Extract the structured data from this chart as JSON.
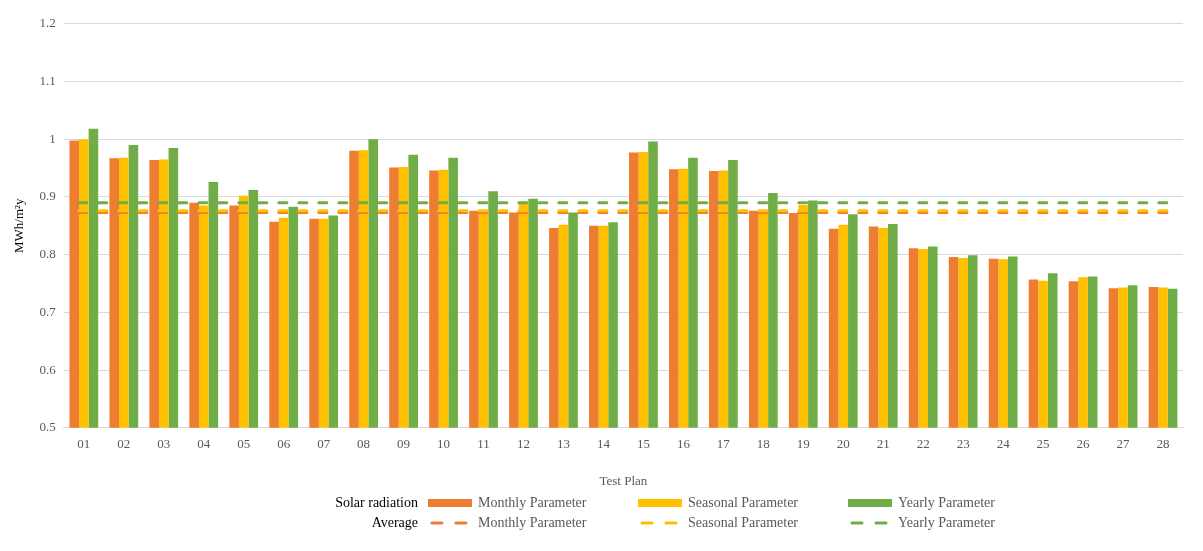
{
  "chart_data": {
    "type": "bar",
    "xlabel": "Test Plan",
    "ylabel": "MWh/m²y",
    "categories": [
      "01",
      "02",
      "03",
      "04",
      "05",
      "06",
      "07",
      "08",
      "09",
      "10",
      "11",
      "12",
      "13",
      "14",
      "15",
      "16",
      "17",
      "18",
      "19",
      "20",
      "21",
      "22",
      "23",
      "24",
      "25",
      "26",
      "27",
      "28"
    ],
    "series": [
      {
        "name": "Monthly Parameter",
        "color": "#ed7d31",
        "values": [
          0.998,
          0.967,
          0.964,
          0.89,
          0.885,
          0.857,
          0.862,
          0.98,
          0.951,
          0.946,
          0.876,
          0.873,
          0.846,
          0.85,
          0.977,
          0.948,
          0.945,
          0.876,
          0.872,
          0.845,
          0.849,
          0.811,
          0.796,
          0.793,
          0.757,
          0.754,
          0.742,
          0.744
        ]
      },
      {
        "name": "Seasonal Parameter",
        "color": "#ffc000",
        "values": [
          1.0,
          0.968,
          0.965,
          0.885,
          0.902,
          0.864,
          0.862,
          0.981,
          0.952,
          0.947,
          0.875,
          0.888,
          0.852,
          0.85,
          0.978,
          0.949,
          0.946,
          0.875,
          0.886,
          0.852,
          0.846,
          0.81,
          0.794,
          0.792,
          0.755,
          0.761,
          0.743,
          0.743
        ]
      },
      {
        "name": "Yearly Parameter",
        "color": "#70ad47",
        "values": [
          1.018,
          0.99,
          0.985,
          0.926,
          0.912,
          0.883,
          0.868,
          1.0,
          0.973,
          0.968,
          0.91,
          0.897,
          0.873,
          0.856,
          0.996,
          0.968,
          0.964,
          0.907,
          0.894,
          0.87,
          0.853,
          0.814,
          0.799,
          0.797,
          0.768,
          0.762,
          0.747,
          0.741
        ]
      }
    ],
    "ref_lines": [
      {
        "axis": "y",
        "value": 0.873,
        "label": "Monthly Parameter",
        "color": "#ed7d31",
        "line_style": "dashed"
      },
      {
        "axis": "y",
        "value": 0.876,
        "label": "Seasonal Parameter",
        "color": "#ffc000",
        "line_style": "dashed"
      },
      {
        "axis": "y",
        "value": 0.89,
        "label": "Yearly Parameter",
        "color": "#70ad47",
        "line_style": "dashed"
      }
    ],
    "annotations": [
      "Solar radiation",
      "Average"
    ],
    "ylim": [
      0.5,
      1.2
    ],
    "yticks": [
      0.5,
      0.6,
      0.7,
      0.8,
      0.9,
      1,
      1.1,
      1.2
    ],
    "grid": "y",
    "legend": "bottom"
  }
}
